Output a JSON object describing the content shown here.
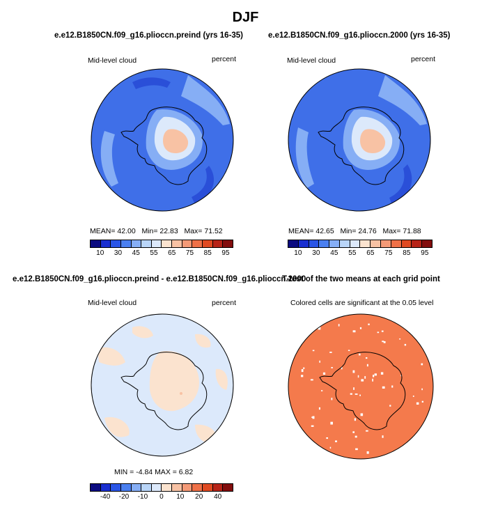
{
  "title": "DJF",
  "panels": [
    {
      "title": "e.e12.B1850CN.f09_g16.plioccn.preind (yrs 16-35)",
      "left_label": "Mid-level cloud",
      "right_label": "percent",
      "stats": {
        "mean_label": "MEAN=",
        "mean": "42.00",
        "min_label": "Min=",
        "min": "22.83",
        "max_label": "Max=",
        "max": "71.52"
      }
    },
    {
      "title": "e.e12.B1850CN.f09_g16.plioccn.2000 (yrs 16-35)",
      "left_label": "Mid-level cloud",
      "right_label": "percent",
      "stats": {
        "mean_label": "MEAN=",
        "mean": "42.65",
        "min_label": "Min=",
        "min": "24.76",
        "max_label": "Max=",
        "max": "71.88"
      }
    },
    {
      "title": "e.e12.B1850CN.f09_g16.plioccn.preind - e.e12.B1850CN.f09_g16.plioccn.2000",
      "left_label": "Mid-level cloud",
      "right_label": "percent",
      "stats_line": "MIN =   -4.84  MAX =    6.82"
    },
    {
      "title": "T-test of the two means at each grid point",
      "subtitle": "Colored cells are significant at the 0.05 level"
    }
  ],
  "colorbar_abs": {
    "labels": [
      "10",
      "30",
      "45",
      "55",
      "65",
      "75",
      "85",
      "95"
    ],
    "colors": [
      "#0b0b80",
      "#1a2fd0",
      "#2a55e6",
      "#4a7ff0",
      "#86aef5",
      "#b9d5f8",
      "#dce9fb",
      "#fbe3cf",
      "#f8c2a4",
      "#f49a77",
      "#ef7148",
      "#e04a22",
      "#b72418",
      "#820d0d"
    ]
  },
  "colorbar_diff": {
    "labels": [
      "-40",
      "-20",
      "-10",
      "0",
      "10",
      "20",
      "40"
    ],
    "colors": [
      "#0b0b80",
      "#1a2fd0",
      "#2a55e6",
      "#4a7ff0",
      "#86aef5",
      "#b9d5f8",
      "#dce9fb",
      "#fbe3cf",
      "#f8c2a4",
      "#f49a77",
      "#ef7148",
      "#e04a22",
      "#b72418",
      "#820d0d"
    ]
  },
  "map_colors": {
    "abs_base": "#3f6fe8",
    "abs_dark": "#2a4fd8",
    "abs_light": "#86aef5",
    "abs_pale": "#dce9fb",
    "abs_warm": "#f8c2a4",
    "diff_base": "#dce9fb",
    "diff_warm": "#fbe3cf",
    "ttest_fill": "#f47a4c"
  }
}
